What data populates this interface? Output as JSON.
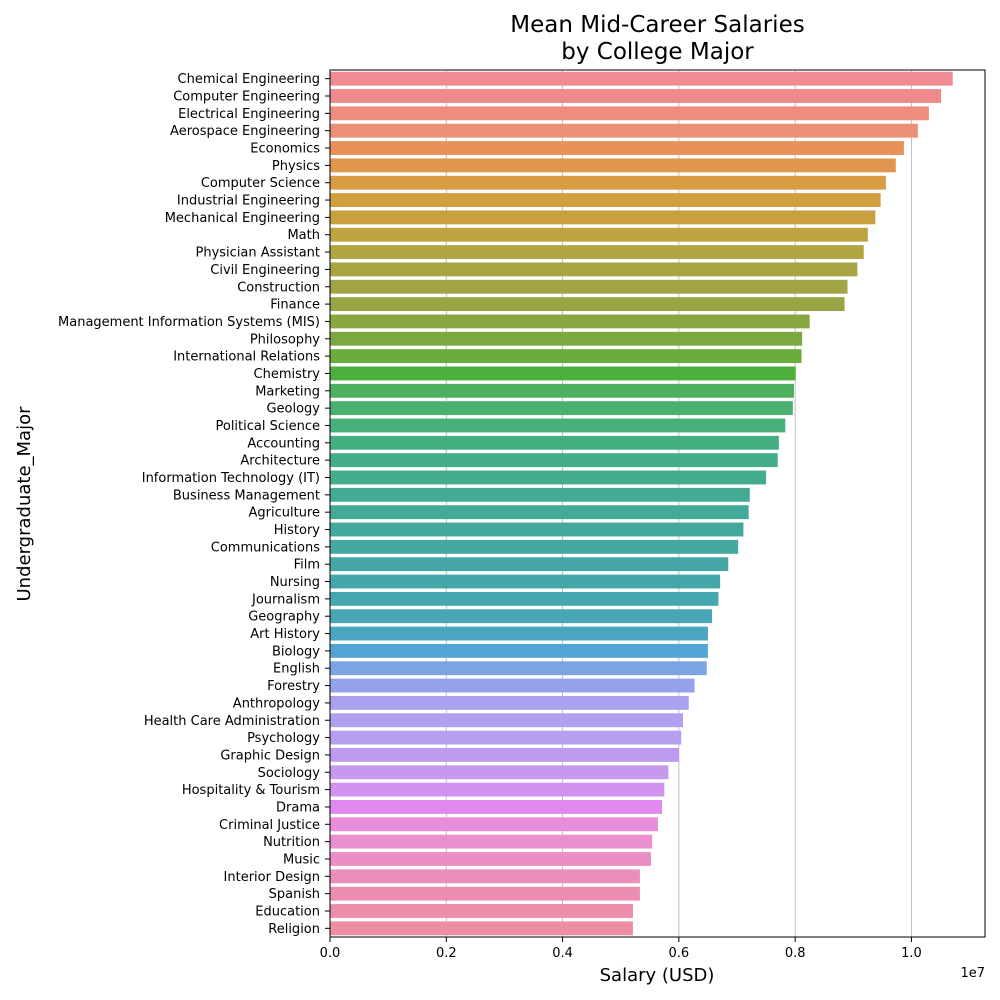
{
  "chart_data": {
    "type": "bar",
    "orientation": "horizontal",
    "title_line1": "Mean Mid-Career Salaries",
    "title_line2": "by College Major",
    "xlabel": "Salary (USD)",
    "ylabel": "Undergraduate_Major",
    "x_offset_label": "1e7",
    "xlim": [
      0,
      1.1265
    ],
    "x_ticks": [
      0.0,
      0.2,
      0.4,
      0.6,
      0.8,
      1.0
    ],
    "x_tick_labels": [
      "0.0",
      "0.2",
      "0.4",
      "0.6",
      "0.8",
      "1.0"
    ],
    "grid": "vertical",
    "categories": [
      "Chemical Engineering",
      "Computer Engineering",
      "Electrical Engineering",
      "Aerospace Engineering",
      "Economics",
      "Physics",
      "Computer Science",
      "Industrial Engineering",
      "Mechanical Engineering",
      "Math",
      "Physician Assistant",
      "Civil Engineering",
      "Construction",
      "Finance",
      "Management Information Systems (MIS)",
      "Philosophy",
      "International Relations",
      "Chemistry",
      "Marketing",
      "Geology",
      "Political Science",
      "Accounting",
      "Architecture",
      "Information Technology (IT)",
      "Business Management",
      "Agriculture",
      "History",
      "Communications",
      "Film",
      "Nursing",
      "Journalism",
      "Geography",
      "Art History",
      "Biology",
      "English",
      "Forestry",
      "Anthropology",
      "Health Care Administration",
      "Psychology",
      "Graphic Design",
      "Sociology",
      "Hospitality & Tourism",
      "Drama",
      "Criminal Justice",
      "Nutrition",
      "Music",
      "Interior Design",
      "Spanish",
      "Education",
      "Religion"
    ],
    "values": [
      1.071,
      1.051,
      1.03,
      1.011,
      0.987,
      0.973,
      0.956,
      0.947,
      0.938,
      0.925,
      0.918,
      0.907,
      0.89,
      0.885,
      0.825,
      0.812,
      0.811,
      0.801,
      0.798,
      0.796,
      0.783,
      0.772,
      0.77,
      0.75,
      0.722,
      0.72,
      0.711,
      0.702,
      0.685,
      0.671,
      0.668,
      0.657,
      0.65,
      0.65,
      0.648,
      0.627,
      0.617,
      0.607,
      0.604,
      0.6,
      0.582,
      0.575,
      0.571,
      0.564,
      0.554,
      0.552,
      0.533,
      0.533,
      0.521,
      0.521
    ],
    "colors": [
      "#ef8b92",
      "#ee8a8a",
      "#ed8c7f",
      "#ec8f77",
      "#e8915b",
      "#e0964c",
      "#d89c45",
      "#cf9f40",
      "#c8a03f",
      "#bea341",
      "#b3a442",
      "#a9a443",
      "#a1a444",
      "#99a544",
      "#8ba743",
      "#7ca93f",
      "#6bac3c",
      "#4daf3b",
      "#4cb05f",
      "#4ab070",
      "#48b07b",
      "#45ae83",
      "#44ad89",
      "#43ab8e",
      "#44aa93",
      "#43a998",
      "#44a89c",
      "#45a8a1",
      "#46a7a6",
      "#46a7ab",
      "#47a7b0",
      "#48a6b6",
      "#4aa5c0",
      "#53a6d3",
      "#7aa4e4",
      "#96a2ec",
      "#a7a1ee",
      "#b19fef",
      "#b79ff0",
      "#bd9cf0",
      "#c699ef",
      "#d193ef",
      "#e08aee",
      "#e78dd9",
      "#ea8ecd",
      "#ea8ec5",
      "#eb8ebb",
      "#ec8eb2",
      "#ec8ea9",
      "#ed8ea2"
    ]
  }
}
